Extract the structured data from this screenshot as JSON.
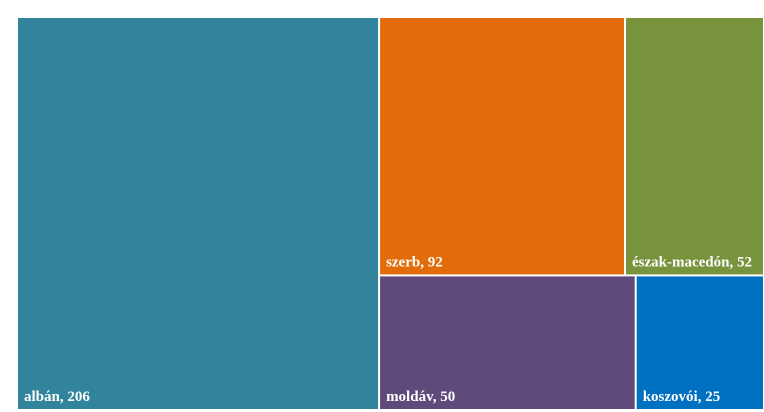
{
  "chart_data": {
    "type": "treemap",
    "categories": [
      "albán",
      "szerb",
      "észak-macedón",
      "moldáv",
      "koszovói"
    ],
    "values": [
      206,
      92,
      52,
      50,
      25
    ],
    "colors": [
      "#31849b",
      "#e36c0a",
      "#77933c",
      "#604a7b",
      "#0070c0"
    ]
  }
}
